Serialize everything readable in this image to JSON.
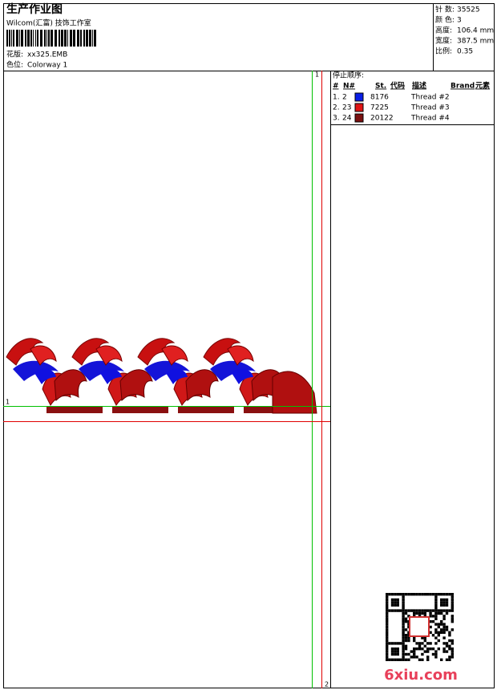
{
  "header": {
    "title": "生产作业图",
    "company": "Wilcom(汇富) 技饰工作室",
    "pattern_label": "花版:",
    "pattern_value": "xx325.EMB",
    "colorway_label": "色位:",
    "colorway_value": "Colorway 1"
  },
  "stats": [
    {
      "label": "针 数:",
      "value": "35525"
    },
    {
      "label": "颜 色:",
      "value": "3"
    },
    {
      "label": "高度:",
      "value": "106.4 mm"
    },
    {
      "label": "宽度:",
      "value": "387.5 mm"
    },
    {
      "label": "比例:",
      "value": "0.35"
    }
  ],
  "stop_sequence": {
    "title": "停止顺序:",
    "columns": [
      "#",
      "N#",
      "St.",
      "代码",
      "描述",
      "Brand",
      "元素"
    ],
    "rows": [
      {
        "index": "1.",
        "n": "2",
        "color": "#0a1ee6",
        "code": "8176",
        "description": "Thread #2"
      },
      {
        "index": "2.",
        "n": "23",
        "color": "#e01414",
        "code": "7225",
        "description": "Thread #3"
      },
      {
        "index": "3.",
        "n": "24",
        "color": "#7a1010",
        "code": "20122",
        "description": "Thread #4"
      }
    ]
  },
  "guides": {
    "vertical_label": "1",
    "horizontal_label": "1",
    "end_label": "2"
  },
  "watermark": "6xiu.com"
}
